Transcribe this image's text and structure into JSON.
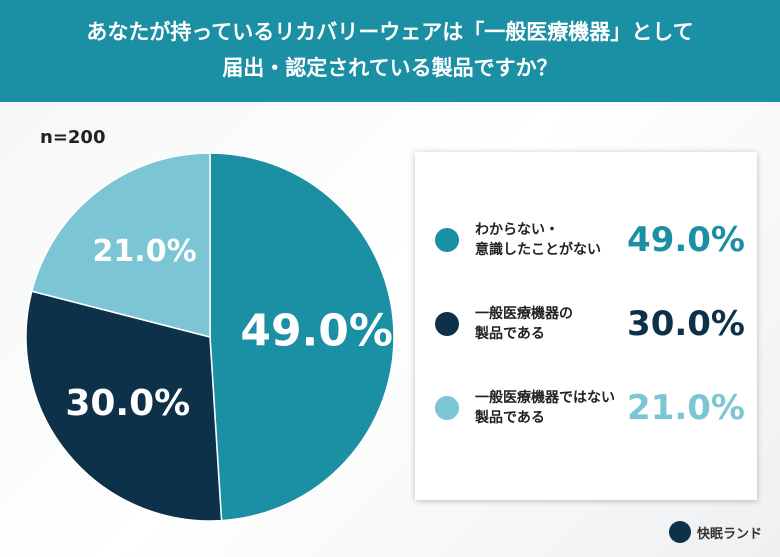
{
  "chart_data": {
    "type": "pie",
    "title": [
      "あなたが持っているリカバリーウェアは「一般医療機器」として",
      "届出・認定されている製品ですか？"
    ],
    "annotation": "n=200",
    "categories": [
      "わからない・\n意識したことがない",
      "一般医療機器の\n製品である",
      "一般医療機器ではない\n製品である"
    ],
    "values": [
      49.0,
      30.0,
      21.0
    ],
    "value_labels": [
      "49.0%",
      "30.0%",
      "21.0%"
    ],
    "colors": [
      "#1b8fa3",
      "#0c3148",
      "#7cc5d4"
    ],
    "brand": "快眠ランド"
  }
}
